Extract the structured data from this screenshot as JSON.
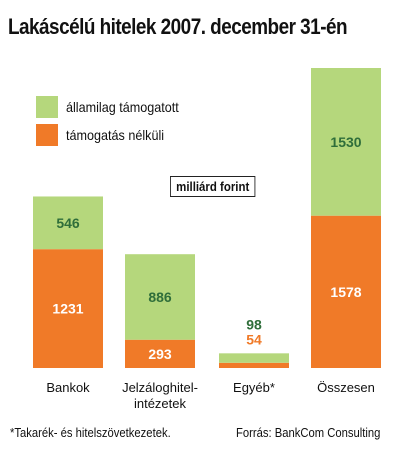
{
  "title": "Lakáscélú hitelek 2007. december 31-én",
  "unit_label": "milliárd forint",
  "footnote": "*Takarék- és hitelszövetkezetek.",
  "source": "Forrás: BankCom Consulting",
  "colors": {
    "allami": "#b5d77c",
    "nelkuli": "#f07a28",
    "allami_label": "#2f6e3a",
    "nelkuli_label": "#ffffff",
    "small_allami_label": "#2f6e3a",
    "small_nelkuli_label": "#f07a28"
  },
  "chart_data": {
    "type": "bar",
    "stacked": true,
    "title": "Lakáscélú hitelek 2007. december 31-én",
    "unit": "milliárd forint",
    "categories": [
      [
        "Bankok"
      ],
      [
        "Jelzáloghitel-",
        "intézetek"
      ],
      [
        "Egyéb*"
      ],
      [
        "Összesen"
      ]
    ],
    "series": [
      {
        "name": "támogatás nélküli",
        "values": [
          1231,
          293,
          54,
          1578
        ]
      },
      {
        "name": "államilag támogatott",
        "values": [
          546,
          886,
          98,
          1530
        ]
      }
    ],
    "legend_position": "top-left",
    "grid": false
  }
}
